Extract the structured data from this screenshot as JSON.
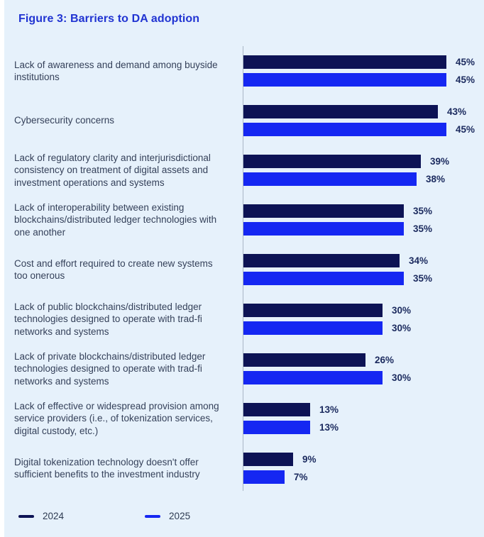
{
  "figure": {
    "title": "Figure 3: Barriers to DA adoption"
  },
  "chart_data": {
    "type": "bar",
    "orientation": "horizontal",
    "title": "Figure 3: Barriers to DA adoption",
    "unit": "%",
    "value_labels": true,
    "xlim": [
      0,
      45
    ],
    "grid": false,
    "legend_position": "bottom",
    "categories": [
      "Lack of awareness and demand among buyside institutions",
      "Cybersecurity concerns",
      "Lack of regulatory clarity and interjurisdictional consistency on treatment of digital assets and investment operations and systems",
      "Lack of interoperability between existing blockchains/distributed ledger technologies with one another",
      "Cost and effort required to create new systems too onerous",
      "Lack of public blockchains/distributed ledger technologies designed to operate with trad-fi networks and systems",
      "Lack of private blockchains/distributed ledger technologies designed to operate with trad-fi networks and systems",
      "Lack of effective or widespread provision among service providers (i.e., of tokenization services, digital custody, etc.)",
      "Digital tokenization technology doesn't offer sufficient benefits to the investment industry"
    ],
    "series": [
      {
        "name": "2024",
        "color": "#0d1355",
        "values": [
          45,
          43,
          39,
          35,
          34,
          30,
          26,
          13,
          9
        ]
      },
      {
        "name": "2025",
        "color": "#1527f2",
        "values": [
          45,
          45,
          38,
          35,
          35,
          30,
          30,
          13,
          7
        ]
      }
    ],
    "value_label_format": "{v}%"
  },
  "legend": {
    "items": [
      {
        "label": "2024",
        "color": "#0d1355"
      },
      {
        "label": "2025",
        "color": "#1527f2"
      }
    ]
  },
  "colors": {
    "background": "#e6f1fb",
    "title_text": "#2134d2",
    "category_text": "#35415a",
    "value_text": "#1b2a5e",
    "axis_line": "#a9b6c6",
    "series_2024": "#0d1355",
    "series_2025": "#1527f2"
  }
}
